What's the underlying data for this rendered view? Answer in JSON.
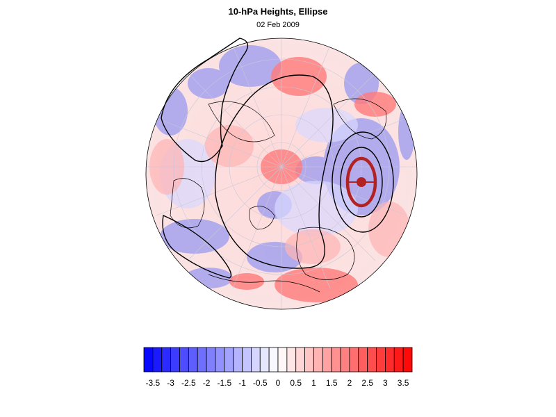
{
  "map": {
    "title": "10-hPa Heights, Ellipse",
    "subtitle": "02 Feb 2009",
    "projection": "orthographic polar (northern hemisphere)",
    "shading": "height anomaly (blue negative, red positive)",
    "contours": "black solid lines",
    "ellipse": {
      "color": "#b22222",
      "marker": "filled-circle"
    }
  },
  "colorbar": {
    "tick_labels": [
      "-3.5",
      "-3",
      "-2.5",
      "-2",
      "-1.5",
      "-1",
      "-0.5",
      "0",
      "0.5",
      "1",
      "1.5",
      "2",
      "2.5",
      "3",
      "3.5"
    ],
    "min": -3.75,
    "max": 3.75,
    "step": 0.25,
    "negative_color": "#0000ff",
    "positive_color": "#ff0000"
  }
}
